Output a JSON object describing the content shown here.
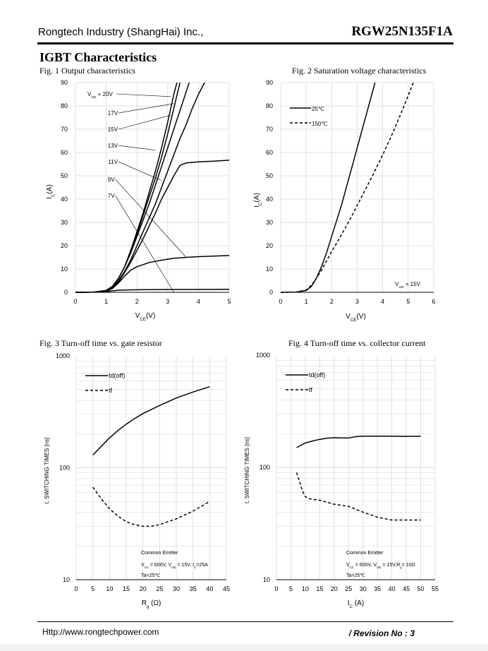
{
  "header": {
    "company": "Rongtech Industry (ShangHai) Inc.,",
    "part_number": "RGW25N135F1A"
  },
  "section_title": "IGBT Characteristics",
  "footer": {
    "url": "Http://www.rongtechpower.com",
    "revision": "/ Revision No : 3"
  },
  "colors": {
    "ink": "#000000",
    "grid": "#d9d9d9",
    "page": "#ffffff",
    "margin": "#f2f2f2"
  },
  "chart_data": [
    {
      "id": "fig1",
      "type": "line",
      "title": "Fig. 1 Output characteristics",
      "xlabel": [
        "V",
        "CE",
        "(V)"
      ],
      "ylabel": [
        "I",
        "C",
        "(A)"
      ],
      "xlim": [
        0,
        5
      ],
      "ylim": [
        0,
        90
      ],
      "xticks": [
        "0",
        "1",
        "2",
        "3",
        "4",
        "5"
      ],
      "yticks": [
        "0",
        "10",
        "20",
        "30",
        "40",
        "50",
        "60",
        "70",
        "80",
        "90"
      ],
      "annotation": [
        "V",
        "GE",
        " = 20V"
      ],
      "series": [
        {
          "name": "20V",
          "x": [
            0,
            0.6,
            1,
            1.2,
            1.4,
            1.6,
            1.8,
            2.0,
            2.2,
            2.4,
            2.6,
            2.8,
            3.0,
            3.2,
            3.4
          ],
          "y": [
            0,
            0.1,
            0.8,
            2.5,
            6,
            11,
            18,
            25,
            33,
            41,
            49,
            58,
            68,
            79,
            90
          ]
        },
        {
          "name": "17V",
          "x": [
            0,
            0.6,
            1,
            1.2,
            1.4,
            1.6,
            1.8,
            2.0,
            2.2,
            2.4,
            2.6,
            2.8,
            3.0,
            3.2,
            3.3
          ],
          "y": [
            0,
            0.1,
            0.8,
            2.5,
            6,
            11,
            18,
            26,
            34,
            43,
            52,
            62,
            73,
            85,
            90
          ]
        },
        {
          "name": "15V",
          "x": [
            0,
            0.6,
            1,
            1.2,
            1.4,
            1.6,
            1.8,
            2.0,
            2.2,
            2.4,
            2.6,
            2.8,
            3.0,
            3.2,
            3.7
          ],
          "y": [
            0,
            0.1,
            0.8,
            2.5,
            6,
            11,
            17,
            24,
            31,
            38,
            46,
            54,
            62,
            70,
            90
          ]
        },
        {
          "name": "13V",
          "x": [
            0,
            0.6,
            1,
            1.2,
            1.4,
            1.6,
            1.8,
            2.0,
            2.2,
            2.4,
            2.6,
            2.8,
            3.0,
            3.2,
            3.4,
            3.6,
            3.8,
            4.0,
            4.2
          ],
          "y": [
            0,
            0.1,
            0.7,
            2,
            5,
            9,
            14,
            20,
            26,
            32,
            38,
            45,
            52,
            59,
            66,
            72,
            79,
            85,
            90
          ]
        },
        {
          "name": "11V",
          "x": [
            0,
            0.6,
            1,
            1.2,
            1.4,
            1.6,
            1.8,
            2.0,
            2.2,
            2.4,
            2.6,
            2.8,
            3.0,
            3.2,
            3.4,
            3.6,
            4.0,
            4.5,
            5.0
          ],
          "y": [
            0,
            0.1,
            0.6,
            1.8,
            4.5,
            8.5,
            13,
            18,
            23,
            28.5,
            34,
            40,
            45,
            50,
            54.5,
            55.5,
            56,
            56.3,
            56.7
          ]
        },
        {
          "name": "9V",
          "x": [
            0,
            0.6,
            1,
            1.2,
            1.4,
            1.6,
            1.8,
            2.0,
            2.4,
            2.8,
            3.2,
            3.6,
            4.0,
            5.0
          ],
          "y": [
            0,
            0.1,
            0.5,
            1.6,
            4,
            7,
            9.5,
            11,
            12.8,
            13.8,
            14.6,
            15,
            15.3,
            15.8
          ]
        },
        {
          "name": "7V",
          "x": [
            0,
            0.6,
            1,
            1.2,
            1.4,
            1.6,
            2.0,
            3.0,
            5.0
          ],
          "y": [
            0,
            0.05,
            0.3,
            0.6,
            0.9,
            1.0,
            1.1,
            1.2,
            1.3
          ]
        }
      ],
      "callouts": [
        {
          "label": "17V",
          "x": [
            1.4,
            3.2
          ],
          "y": [
            77,
            81
          ]
        },
        {
          "label": "15V",
          "x": [
            1.4,
            3.1
          ],
          "y": [
            70,
            76
          ]
        },
        {
          "label": "13V",
          "x": [
            1.4,
            2.6
          ],
          "y": [
            63,
            61
          ]
        },
        {
          "label": "11V",
          "x": [
            1.4,
            2.8
          ],
          "y": [
            56,
            48
          ]
        },
        {
          "label": "9V",
          "x": [
            1.3,
            3.6
          ],
          "y": [
            48.5,
            15
          ]
        },
        {
          "label": "7V",
          "x": [
            1.3,
            3.2
          ],
          "y": [
            41.5,
            0
          ]
        }
      ]
    },
    {
      "id": "fig2",
      "type": "line",
      "title": "Fig. 2 Saturation voltage characteristics",
      "xlabel": [
        "V",
        "CE",
        "(V)"
      ],
      "ylabel": [
        "I",
        "C",
        "(A)"
      ],
      "xlim": [
        0,
        6
      ],
      "ylim": [
        0,
        90
      ],
      "xticks": [
        "0",
        "1",
        "2",
        "3",
        "4",
        "5",
        "6"
      ],
      "yticks": [
        "0",
        "10",
        "20",
        "30",
        "40",
        "50",
        "60",
        "70",
        "80",
        "90"
      ],
      "annotation": [
        "V",
        "GE",
        " = 15V"
      ],
      "series": [
        {
          "name": "25℃",
          "style": "solid",
          "x": [
            0,
            0.6,
            1,
            1.2,
            1.4,
            1.6,
            1.8,
            2.0,
            2.2,
            2.4,
            2.6,
            2.8,
            3.0,
            3.2,
            3.4,
            3.6,
            3.7
          ],
          "y": [
            0,
            0.1,
            0.8,
            2.5,
            6,
            11,
            17,
            24,
            31,
            38,
            46,
            54,
            62,
            70,
            78,
            86,
            90
          ]
        },
        {
          "name": "150℃",
          "style": "dashed",
          "x": [
            0,
            0.6,
            1,
            1.2,
            1.4,
            1.6,
            1.8,
            2.0,
            2.4,
            2.8,
            3.2,
            3.6,
            4.0,
            4.4,
            4.8,
            5.2
          ],
          "y": [
            0,
            0.1,
            1,
            3,
            6,
            9.5,
            13.5,
            17.5,
            25,
            33,
            41.5,
            50,
            59,
            68.5,
            79,
            90
          ]
        }
      ]
    },
    {
      "id": "fig3",
      "type": "line",
      "scale": "log",
      "title": "Fig. 3  Turn-off time vs. gate resistor",
      "xlabel": [
        "R",
        "g",
        " (Ω)"
      ],
      "ylabel": "t, SWITCHING TIMES [ns]",
      "xlim": [
        0,
        45
      ],
      "ylim": [
        10,
        1000
      ],
      "xticks": [
        "0",
        "5",
        "10",
        "15",
        "20",
        "25",
        "30",
        "35",
        "40",
        "45"
      ],
      "yticks": [
        "10",
        "100",
        "1000"
      ],
      "conditions": [
        "Common Emitter",
        "V",
        "CC",
        " = 600V, V",
        "GE",
        " = 15V, I",
        "C",
        "=25A",
        "Ta=25℃"
      ],
      "series": [
        {
          "name": "td(off)",
          "style": "solid",
          "x": [
            5,
            7.5,
            10,
            12.5,
            15,
            17.5,
            20,
            25,
            30,
            35,
            40
          ],
          "y": [
            130,
            155,
            185,
            215,
            245,
            275,
            305,
            360,
            420,
            475,
            530
          ]
        },
        {
          "name": "tf",
          "style": "dashed",
          "x": [
            5,
            7.5,
            10,
            12.5,
            15,
            17.5,
            20,
            22.5,
            25,
            27.5,
            30,
            35,
            40
          ],
          "y": [
            67,
            53,
            43,
            37,
            33,
            31,
            30,
            30,
            31,
            33,
            35,
            41,
            50
          ]
        }
      ]
    },
    {
      "id": "fig4",
      "type": "line",
      "scale": "log",
      "title": "Fig. 4  Turn-off time vs. collector current",
      "xlabel": [
        "I",
        "C",
        " (A)"
      ],
      "ylabel": "t, SWITCHING TIMES [ns]",
      "xlim": [
        0,
        55
      ],
      "ylim": [
        10,
        1000
      ],
      "xticks": [
        "0",
        "5",
        "10",
        "15",
        "20",
        "25",
        "30",
        "35",
        "40",
        "45",
        "50",
        "55"
      ],
      "yticks": [
        "10",
        "100",
        "1000"
      ],
      "conditions": [
        "Common Emitter",
        "V",
        "CC",
        " = 600V, V",
        "GE",
        " = 15V,R",
        "g",
        "= 10Ω",
        "Ta=25℃"
      ],
      "series": [
        {
          "name": "td(off)",
          "style": "solid",
          "x": [
            7,
            10,
            12.5,
            15,
            17.5,
            20,
            22.5,
            25,
            27.5,
            30,
            32.5,
            35,
            40,
            45,
            50
          ],
          "y": [
            150,
            165,
            172,
            178,
            182,
            184,
            183,
            183,
            188,
            190,
            190,
            190,
            190,
            189,
            190
          ]
        },
        {
          "name": "tf",
          "style": "dashed",
          "x": [
            7,
            8,
            9,
            10,
            11,
            12.5,
            15,
            17.5,
            20,
            25,
            30,
            35,
            40,
            45,
            50
          ],
          "y": [
            90,
            75,
            62,
            55,
            53,
            52,
            51,
            49,
            47,
            45,
            40,
            36,
            34,
            34,
            34
          ]
        }
      ]
    }
  ]
}
